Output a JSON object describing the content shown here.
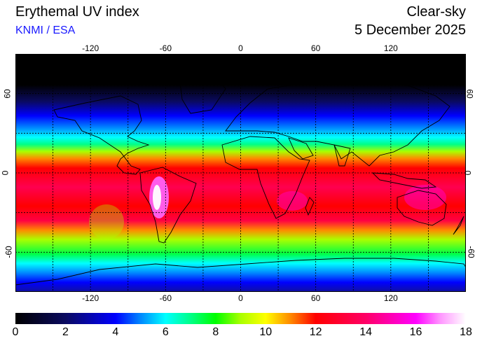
{
  "header": {
    "title": "Erythemal UV index",
    "credit": "KNMI / ESA",
    "mode": "Clear-sky",
    "date": "5 December 2025"
  },
  "map": {
    "longitude_ticks": [
      "-120",
      "-60",
      "0",
      "60",
      "120"
    ],
    "longitude_values": [
      -120,
      -60,
      0,
      60,
      120
    ],
    "latitude_ticks": [
      "60",
      "0",
      "-60"
    ],
    "latitude_values": [
      60,
      0,
      -60
    ],
    "grid_lat": [
      60,
      30,
      0,
      -30,
      -60
    ],
    "grid_lon": [
      -150,
      -120,
      -90,
      -60,
      -30,
      0,
      30,
      60,
      90,
      120,
      150
    ],
    "lon_range": [
      -180,
      180
    ],
    "lat_range": [
      -90,
      90
    ]
  },
  "colorbar": {
    "labels": [
      "0",
      "2",
      "4",
      "6",
      "8",
      "10",
      "12",
      "14",
      "16",
      "18"
    ],
    "range": [
      0,
      18
    ],
    "stops": [
      {
        "value": 0,
        "color": "#000000"
      },
      {
        "value": 2,
        "color": "#0a0a60"
      },
      {
        "value": 4,
        "color": "#0000ff"
      },
      {
        "value": 5,
        "color": "#0088ff"
      },
      {
        "value": 6,
        "color": "#00ffff"
      },
      {
        "value": 7,
        "color": "#00ff88"
      },
      {
        "value": 8,
        "color": "#00ff00"
      },
      {
        "value": 9,
        "color": "#aaff00"
      },
      {
        "value": 10,
        "color": "#ffff00"
      },
      {
        "value": 11,
        "color": "#ff8800"
      },
      {
        "value": 12,
        "color": "#ff0000"
      },
      {
        "value": 14,
        "color": "#ff0066"
      },
      {
        "value": 16,
        "color": "#ff00ff"
      },
      {
        "value": 17,
        "color": "#ff99ff"
      },
      {
        "value": 18,
        "color": "#ffffff"
      }
    ]
  }
}
